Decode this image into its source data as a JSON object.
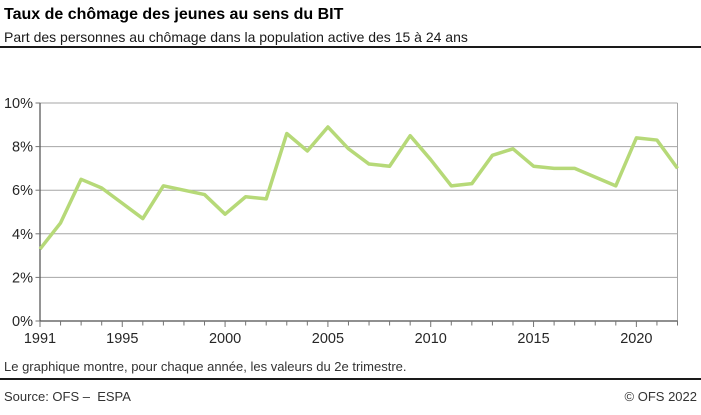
{
  "header": {
    "title": "Taux de chômage des jeunes au sens du BIT",
    "subtitle": "Part des personnes au chômage dans la population active des 15 à 24 ans"
  },
  "footnote": "Le graphique montre, pour chaque année, les valeurs du 2e trimestre.",
  "footer": {
    "source": "Source: OFS –  ESPA",
    "copyright": "© OFS 2022"
  },
  "chart_data": {
    "type": "line",
    "title": "Taux de chômage des jeunes au sens du BIT",
    "x": [
      1991,
      1992,
      1993,
      1994,
      1995,
      1996,
      1997,
      1998,
      1999,
      2000,
      2001,
      2002,
      2003,
      2004,
      2005,
      2006,
      2007,
      2008,
      2009,
      2010,
      2011,
      2012,
      2013,
      2014,
      2015,
      2016,
      2017,
      2018,
      2019,
      2020,
      2021,
      2022
    ],
    "series": [
      {
        "name": "Taux de chômage des jeunes (2e trimestre)",
        "values": [
          3.3,
          4.5,
          6.5,
          6.1,
          5.4,
          4.7,
          6.2,
          6.0,
          5.8,
          4.9,
          5.7,
          5.6,
          8.6,
          7.8,
          8.9,
          7.9,
          7.2,
          7.1,
          8.5,
          7.4,
          6.2,
          6.3,
          7.6,
          7.9,
          7.1,
          7.0,
          7.0,
          6.6,
          6.2,
          8.4,
          8.3,
          7.0
        ]
      }
    ],
    "xlim": [
      1991,
      2022
    ],
    "ylim": [
      0,
      10
    ],
    "y_ticks": [
      0,
      2,
      4,
      6,
      8,
      10
    ],
    "y_tick_suffix": "%",
    "x_labeled_ticks": [
      1991,
      1995,
      2000,
      2005,
      2010,
      2015,
      2020
    ],
    "grid": "horizontal",
    "legend": "none",
    "colors": {
      "line": "#b6d978",
      "grid": "#a6a6a6",
      "axis": "#4d4d4d",
      "tick": "#737373",
      "label": "#262626"
    }
  }
}
